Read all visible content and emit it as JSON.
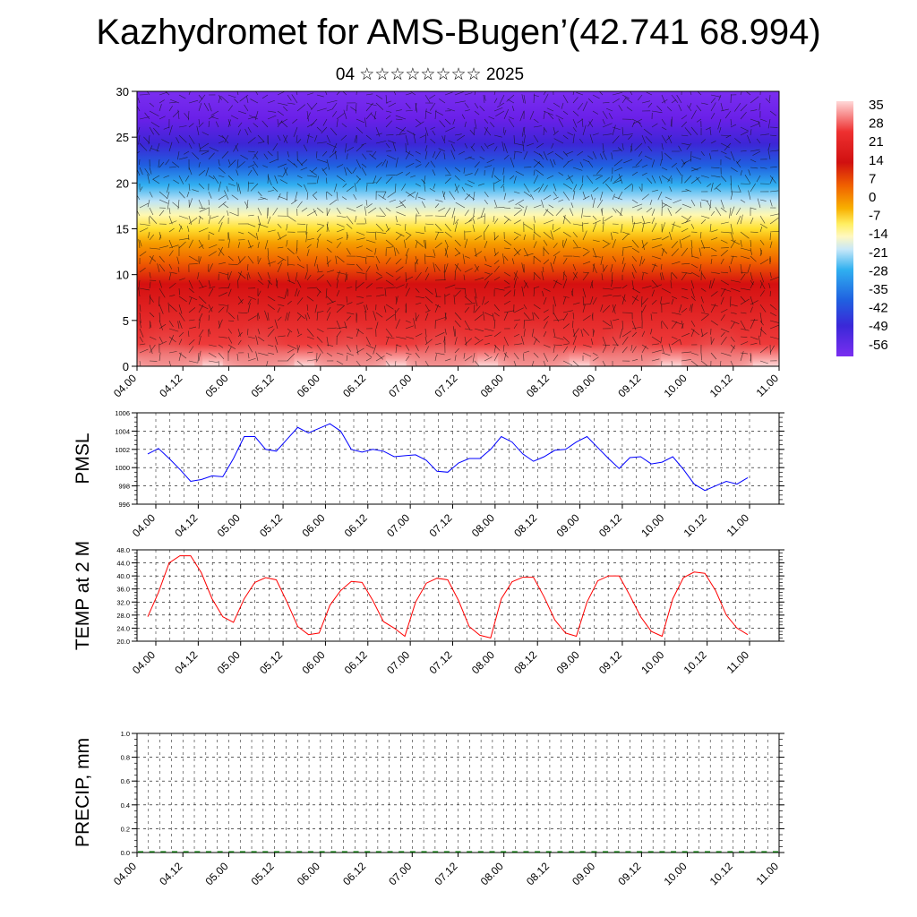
{
  "title": "Kazhydromet for AMS-Bugen’(42.741 68.994)",
  "subtitle": "04 ☆☆☆☆☆☆☆☆ 2025",
  "chart_data": [
    {
      "type": "heatmap",
      "panel": "cross-section",
      "ylim": [
        0,
        30
      ],
      "yticks": [
        "0",
        "5",
        "10",
        "15",
        "20",
        "25",
        "30"
      ],
      "xticks": [
        "04.00",
        "04.12",
        "05.00",
        "05.12",
        "06.00",
        "06.12",
        "07.00",
        "07.12",
        "08.00",
        "08.12",
        "09.00",
        "09.12",
        "10.00",
        "10.12",
        "11.00"
      ],
      "colorbar_labels": [
        "35",
        "28",
        "21",
        "14",
        "7",
        "0",
        "-7",
        "-14",
        "-21",
        "-28",
        "-35",
        "-42",
        "-49",
        "-56"
      ],
      "grid": false,
      "legend": "right"
    },
    {
      "type": "line",
      "panel": "pmsl",
      "ylabel": "PMSL",
      "ylim": [
        996,
        1006
      ],
      "yticks": [
        "996",
        "998",
        "1000",
        "1002",
        "1004",
        "1006"
      ],
      "xticks": [
        "04.00",
        "04.12",
        "05.00",
        "05.12",
        "06.00",
        "06.12",
        "07.00",
        "07.12",
        "08.00",
        "08.12",
        "09.00",
        "09.12",
        "10.00",
        "10.12",
        "11.00"
      ],
      "color": "#0000ff",
      "values": [
        1001.5,
        1002.1,
        1001.0,
        999.8,
        998.5,
        998.7,
        999.1,
        999.0,
        1001.0,
        1003.4,
        1003.4,
        1002.0,
        1001.8,
        1003.1,
        1004.4,
        1003.8,
        1004.3,
        1004.8,
        1004.0,
        1002.0,
        1001.7,
        1002.0,
        1001.8,
        1001.2,
        1001.3,
        1001.4,
        1000.8,
        999.6,
        999.5,
        1000.5,
        1001.0,
        1001.0,
        1002.0,
        1003.4,
        1002.8,
        1001.5,
        1000.7,
        1001.2,
        1001.9,
        1002.0,
        1002.8,
        1003.4,
        1002.2,
        1001.0,
        999.9,
        1001.1,
        1001.2,
        1000.4,
        1000.6,
        1001.2,
        999.8,
        998.2,
        997.5,
        998.0,
        998.5,
        998.2,
        998.9
      ],
      "grid": true
    },
    {
      "type": "line",
      "panel": "temp2m",
      "ylabel": "TEMP at 2 M",
      "ylim": [
        20,
        48
      ],
      "yticks": [
        "20.0",
        "24.0",
        "28.0",
        "32.0",
        "36.0",
        "40.0",
        "44.0",
        "48.0"
      ],
      "xticks": [
        "04.00",
        "04.12",
        "05.00",
        "05.12",
        "06.00",
        "06.12",
        "07.00",
        "07.12",
        "08.00",
        "08.12",
        "09.00",
        "09.12",
        "10.00",
        "10.12",
        "11.00"
      ],
      "color": "#ff0000",
      "values": [
        27.5,
        35.0,
        44.0,
        46.2,
        46.2,
        41.0,
        33.0,
        27.5,
        25.8,
        33.0,
        38.0,
        39.5,
        38.8,
        32.0,
        24.5,
        22.0,
        22.5,
        31.0,
        35.5,
        38.3,
        38.0,
        32.5,
        26.0,
        24.0,
        21.5,
        32.0,
        37.8,
        39.3,
        38.8,
        32.5,
        24.5,
        21.8,
        21.0,
        33.0,
        38.2,
        39.6,
        39.6,
        33.5,
        26.5,
        22.5,
        21.5,
        32.0,
        38.5,
        40.0,
        40.0,
        34.0,
        27.5,
        23.0,
        21.5,
        33.0,
        39.5,
        41.2,
        40.8,
        35.5,
        28.0,
        24.0,
        22.0
      ],
      "grid": true
    },
    {
      "type": "bar",
      "panel": "precip",
      "ylabel": "PRECIP, mm",
      "ylim": [
        0,
        1
      ],
      "yticks": [
        "0.0",
        "0.2",
        "0.4",
        "0.6",
        "0.8",
        "1.0"
      ],
      "xticks": [
        "04.00",
        "04.12",
        "05.00",
        "05.12",
        "06.00",
        "06.12",
        "07.00",
        "07.12",
        "08.00",
        "08.12",
        "09.00",
        "09.12",
        "10.00",
        "10.12",
        "11.00"
      ],
      "values": [
        0,
        0,
        0,
        0,
        0,
        0,
        0,
        0,
        0,
        0,
        0,
        0,
        0,
        0,
        0,
        0,
        0,
        0,
        0,
        0,
        0,
        0,
        0,
        0,
        0,
        0,
        0,
        0,
        0,
        0,
        0,
        0,
        0,
        0,
        0,
        0,
        0,
        0,
        0,
        0,
        0,
        0,
        0,
        0,
        0,
        0,
        0,
        0,
        0,
        0,
        0,
        0,
        0,
        0,
        0,
        0,
        0
      ],
      "color": "#006400",
      "grid": true
    }
  ]
}
